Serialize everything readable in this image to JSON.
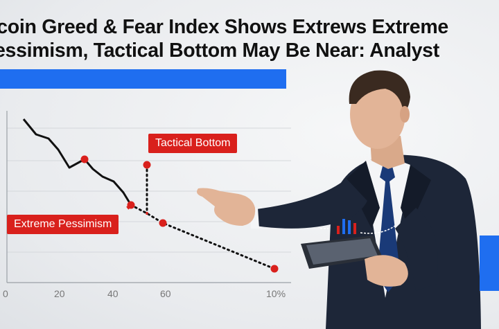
{
  "headline": {
    "line1": "tcoin Greed & Fear Index Shows Extrews Extreme",
    "line2": "essimism, Tactical Bottom May Be Near: Analyst"
  },
  "annotations": {
    "tactical_bottom": "Tactical Bottom",
    "extreme_pessimism": "Extreme Pessimism"
  },
  "x_ticks": [
    "0",
    "20",
    "40",
    "60",
    "10%"
  ],
  "colors": {
    "accent_blue": "#1f6ef0",
    "marker_red": "#d9201c",
    "suit": "#1d2638"
  }
}
